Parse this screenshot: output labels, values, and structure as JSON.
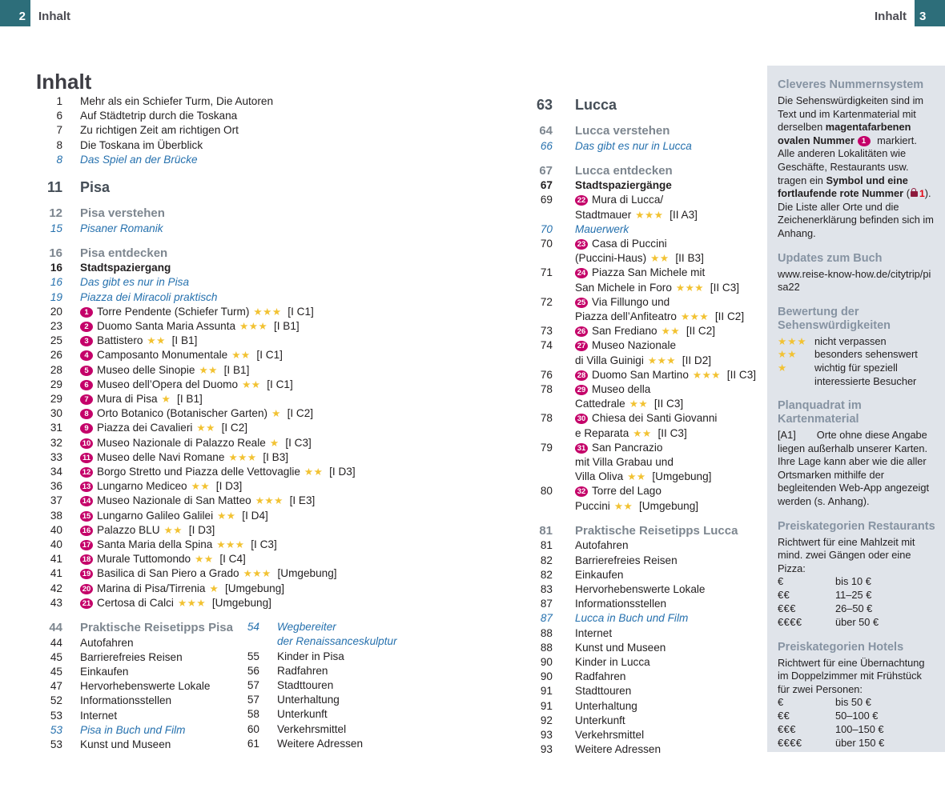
{
  "page": {
    "header": {
      "left_num": "2",
      "left_label": "Inhalt",
      "right_label": "Inhalt",
      "right_num": "3"
    },
    "title": "Inhalt"
  },
  "colors": {
    "teal_corner": "#2d6e7a",
    "sight_badge_magenta": "#c40069",
    "star_gold": "#f2c232",
    "italic_link_blue": "#2671ae",
    "section_gray": "#7d868f",
    "chapter_slate": "#454e57",
    "sidebar_bg": "#e0e4ea",
    "sidebar_heading": "#8693a2",
    "red_number": "#e30613",
    "lock_dark_red": "#8d1b3d"
  },
  "toc_left": [
    {
      "type": "list",
      "entries": [
        {
          "p": "1",
          "t": "Mehr als ein Schiefer Turm, Die Autoren"
        },
        {
          "p": "6",
          "t": "Auf Städtetrip durch die Toskana"
        },
        {
          "p": "7",
          "t": "Zu richtigen Zeit am richtigen Ort"
        },
        {
          "p": "8",
          "t": "Die Toskana im Überblick"
        },
        {
          "p": "8",
          "t": "Das Spiel an der Brücke",
          "style": "italic"
        }
      ]
    },
    {
      "type": "chapter",
      "p": "11",
      "t": "Pisa"
    },
    {
      "type": "list",
      "entries": [
        {
          "p": "12",
          "t": "Pisa verstehen",
          "style": "section"
        },
        {
          "p": "15",
          "t": "Pisaner Romanik",
          "style": "italic"
        }
      ]
    },
    {
      "type": "list",
      "entries": [
        {
          "p": "16",
          "t": "Pisa entdecken",
          "style": "section"
        },
        {
          "p": "16",
          "t": "Stadtspaziergang",
          "style": "bold"
        },
        {
          "p": "16",
          "t": "Das gibt es nur in Pisa",
          "style": "italic"
        },
        {
          "p": "19",
          "t": "Piazza dei Miracoli praktisch",
          "style": "italic"
        },
        {
          "p": "20",
          "badge": "1",
          "t": "Torre Pendente (Schiefer Turm)",
          "stars": 3,
          "grid": "[I C1]"
        },
        {
          "p": "23",
          "badge": "2",
          "t": "Duomo Santa Maria Assunta",
          "stars": 3,
          "grid": "[I B1]"
        },
        {
          "p": "25",
          "badge": "3",
          "t": "Battistero",
          "stars": 2,
          "grid": "[I B1]"
        },
        {
          "p": "26",
          "badge": "4",
          "t": "Camposanto Monumentale",
          "stars": 2,
          "grid": "[I C1]"
        },
        {
          "p": "28",
          "badge": "5",
          "t": "Museo delle Sinopie",
          "stars": 2,
          "grid": "[I B1]"
        },
        {
          "p": "29",
          "badge": "6",
          "t": "Museo dell’Opera del Duomo",
          "stars": 2,
          "grid": "[I C1]"
        },
        {
          "p": "29",
          "badge": "7",
          "t": "Mura di Pisa",
          "stars": 1,
          "grid": "[I B1]"
        },
        {
          "p": "30",
          "badge": "8",
          "t": "Orto Botanico (Botanischer Garten)",
          "stars": 1,
          "grid": "[I C2]"
        },
        {
          "p": "31",
          "badge": "9",
          "t": "Piazza dei Cavalieri",
          "stars": 2,
          "grid": "[I C2]"
        },
        {
          "p": "32",
          "badge": "10",
          "t": "Museo Nazionale di Palazzo Reale",
          "stars": 1,
          "grid": "[I C3]"
        },
        {
          "p": "33",
          "badge": "11",
          "t": "Museo delle Navi Romane",
          "stars": 3,
          "grid": "[I B3]"
        },
        {
          "p": "34",
          "badge": "12",
          "t": "Borgo Stretto und Piazza delle Vettovaglie",
          "stars": 2,
          "grid": "[I D3]"
        },
        {
          "p": "36",
          "badge": "13",
          "t": "Lungarno Mediceo",
          "stars": 2,
          "grid": "[I D3]"
        },
        {
          "p": "37",
          "badge": "14",
          "t": "Museo Nazionale di San Matteo",
          "stars": 3,
          "grid": "[I E3]"
        },
        {
          "p": "38",
          "badge": "15",
          "t": "Lungarno Galileo Galilei",
          "stars": 2,
          "grid": "[I D4]"
        },
        {
          "p": "40",
          "badge": "16",
          "t": "Palazzo BLU",
          "stars": 2,
          "grid": "[I D3]"
        },
        {
          "p": "40",
          "badge": "17",
          "t": "Santa Maria della Spina",
          "stars": 3,
          "grid": "[I C3]"
        },
        {
          "p": "41",
          "badge": "18",
          "t": "Murale Tuttomondo",
          "stars": 2,
          "grid": "[I C4]"
        },
        {
          "p": "41",
          "badge": "19",
          "t": "Basilica di San Piero a Grado",
          "stars": 3,
          "grid": "[Umgebung]"
        },
        {
          "p": "42",
          "badge": "20",
          "t": "Marina di Pisa/Tirrenia",
          "stars": 1,
          "grid": "[Umgebung]"
        },
        {
          "p": "43",
          "badge": "21",
          "t": "Certosa di Calci",
          "stars": 3,
          "grid": "[Umgebung]"
        }
      ]
    },
    {
      "type": "cols",
      "cols": [
        [
          {
            "p": "44",
            "t": "Praktische Reisetipps Pisa",
            "style": "section"
          },
          {
            "p": "44",
            "t": "Autofahren"
          },
          {
            "p": "45",
            "t": "Barrierefreies Reisen"
          },
          {
            "p": "45",
            "t": "Einkaufen"
          },
          {
            "p": "47",
            "t": "Hervorhebenswerte Lokale"
          },
          {
            "p": "52",
            "t": "Informationsstellen"
          },
          {
            "p": "53",
            "t": "Internet"
          },
          {
            "p": "53",
            "t": "Pisa in Buch und Film",
            "style": "italic"
          },
          {
            "p": "53",
            "t": "Kunst und Museen"
          }
        ],
        [
          {
            "p": "54",
            "style": "italic",
            "lines": [
              {
                "t": "Wegbereiter"
              },
              {
                "t": "der Renaissanceskulptur"
              }
            ]
          },
          {
            "p": "55",
            "t": "Kinder in Pisa"
          },
          {
            "p": "56",
            "t": "Radfahren"
          },
          {
            "p": "57",
            "t": "Stadttouren"
          },
          {
            "p": "57",
            "t": "Unterhaltung"
          },
          {
            "p": "58",
            "t": "Unterkunft"
          },
          {
            "p": "60",
            "t": "Verkehrsmittel"
          },
          {
            "p": "61",
            "t": "Weitere Adressen"
          }
        ]
      ]
    }
  ],
  "toc_mid": [
    {
      "type": "chapter",
      "p": "63",
      "t": "Lucca"
    },
    {
      "type": "list",
      "entries": [
        {
          "p": "64",
          "t": "Lucca verstehen",
          "style": "section"
        },
        {
          "p": "66",
          "t": "Das gibt es nur in Lucca",
          "style": "italic"
        }
      ]
    },
    {
      "type": "list",
      "entries": [
        {
          "p": "67",
          "t": "Lucca entdecken",
          "style": "section"
        },
        {
          "p": "67",
          "t": "Stadtspaziergänge",
          "style": "bold"
        },
        {
          "p": "69",
          "badge": "22",
          "lines": [
            {
              "t": "Mura di Lucca/"
            },
            {
              "t": "Stadtmauer",
              "stars": 3,
              "grid": "[II A3]"
            }
          ]
        },
        {
          "p": "70",
          "t": "Mauerwerk",
          "style": "italic"
        },
        {
          "p": "70",
          "badge": "23",
          "lines": [
            {
              "t": "Casa di Puccini"
            },
            {
              "t": "(Puccini-Haus)",
              "stars": 2,
              "grid": "[II B3]"
            }
          ]
        },
        {
          "p": "71",
          "badge": "24",
          "lines": [
            {
              "t": "Piazza San Michele mit"
            },
            {
              "t": "San Michele in Foro",
              "stars": 3,
              "grid": "[II C3]"
            }
          ]
        },
        {
          "p": "72",
          "badge": "25",
          "lines": [
            {
              "t": "Via Fillungo und"
            },
            {
              "t": "Piazza dell’Anfiteatro",
              "stars": 3,
              "grid": "[II C2]"
            }
          ]
        },
        {
          "p": "73",
          "badge": "26",
          "t": "San Frediano",
          "stars": 2,
          "grid": "[II C2]"
        },
        {
          "p": "74",
          "badge": "27",
          "lines": [
            {
              "t": "Museo Nazionale"
            },
            {
              "t": "di Villa Guinigi",
              "stars": 3,
              "grid": "[II D2]"
            }
          ]
        },
        {
          "p": "76",
          "badge": "28",
          "t": "Duomo San Martino",
          "stars": 3,
          "grid": "[II C3]"
        },
        {
          "p": "78",
          "badge": "29",
          "lines": [
            {
              "t": "Museo della"
            },
            {
              "t": "Cattedrale",
              "stars": 2,
              "grid": "[II C3]"
            }
          ]
        },
        {
          "p": "78",
          "badge": "30",
          "lines": [
            {
              "t": "Chiesa dei Santi Giovanni"
            },
            {
              "t": "e Reparata",
              "stars": 2,
              "grid": "[II C3]"
            }
          ]
        },
        {
          "p": "79",
          "badge": "31",
          "lines": [
            {
              "t": "San Pancrazio"
            },
            {
              "t": "mit Villa Grabau und"
            },
            {
              "t": "Villa Oliva",
              "stars": 2,
              "grid": "[Umgebung]"
            }
          ]
        },
        {
          "p": "80",
          "badge": "32",
          "lines": [
            {
              "t": "Torre del Lago"
            },
            {
              "t": "Puccini",
              "stars": 2,
              "grid": "[Umgebung]"
            }
          ]
        }
      ]
    },
    {
      "type": "list",
      "entries": [
        {
          "p": "81",
          "t": "Praktische Reisetipps Lucca",
          "style": "section"
        },
        {
          "p": "81",
          "t": "Autofahren"
        },
        {
          "p": "82",
          "t": "Barrierefreies Reisen"
        },
        {
          "p": "82",
          "t": "Einkaufen"
        },
        {
          "p": "83",
          "t": "Hervorhebenswerte Lokale"
        },
        {
          "p": "87",
          "t": "Informationsstellen"
        },
        {
          "p": "87",
          "t": "Lucca in Buch und Film",
          "style": "italic"
        },
        {
          "p": "88",
          "t": "Internet"
        },
        {
          "p": "88",
          "t": "Kunst und Museen"
        },
        {
          "p": "90",
          "t": "Kinder in Lucca"
        },
        {
          "p": "90",
          "t": "Radfahren"
        },
        {
          "p": "91",
          "t": "Stadttouren"
        },
        {
          "p": "91",
          "t": "Unterhaltung"
        },
        {
          "p": "92",
          "t": "Unterkunft"
        },
        {
          "p": "93",
          "t": "Verkehrsmittel"
        },
        {
          "p": "93",
          "t": "Weitere Adressen"
        }
      ]
    }
  ],
  "sidebar": {
    "sections": [
      {
        "h": "Cleveres Nummernsystem",
        "paras": [
          [
            {
              "t": "Die Sehenswürdigkeiten sind im Text und im Kartenmaterial mit derselben "
            },
            {
              "t": "magentafarbenen ovalen Nummer ",
              "b": 1
            },
            {
              "badge": "1"
            },
            {
              "t": " markiert. Alle anderen Lokalitäten wie Geschäfte, Restaurants usw. tragen ein "
            },
            {
              "t": "Symbol und eine fortlaufende rote Nummer",
              "b": 1
            },
            {
              "t": " ("
            },
            {
              "lock": 1,
              "t": "1"
            },
            {
              "t": "). Die Liste aller Orte und die Zeichenerklärung befinden sich im Anhang."
            }
          ]
        ]
      },
      {
        "h": "Updates zum Buch",
        "url": "www.reise-know-how.de/citytrip/pisa22"
      },
      {
        "h": "Bewertung der Sehenswürdigkeiten",
        "ratings": [
          {
            "stars": 3,
            "label": "nicht verpassen"
          },
          {
            "stars": 2,
            "label": "besonders sehenswert"
          },
          {
            "stars": 1,
            "label": "wichtig für speziell interessierte Besucher"
          }
        ]
      },
      {
        "h": "Planquadrat im Kartenmaterial",
        "paras": [
          [
            {
              "t": "[A1]",
              "key": 1
            },
            {
              "t": "Orte ohne diese Angabe liegen außerhalb unserer Karten. Ihre Lage kann aber wie die aller Ortsmarken mithilfe der begleitenden Web-App angezeigt werden (s. Anhang)."
            }
          ]
        ]
      },
      {
        "h": "Preiskategorien Restaurants",
        "paras": [
          [
            {
              "t": "Richtwert für eine Mahlzeit mit mind. zwei Gängen oder eine Pizza:"
            }
          ]
        ],
        "price_rows": [
          [
            "€",
            "bis 10 €"
          ],
          [
            "€€",
            "11–25 €"
          ],
          [
            "€€€",
            "26–50 €"
          ],
          [
            "€€€€",
            "über 50 €"
          ]
        ]
      },
      {
        "h": "Preiskategorien Hotels",
        "paras": [
          [
            {
              "t": "Richtwert für eine Übernachtung im Doppelzimmer mit Frühstück für zwei Personen:"
            }
          ]
        ],
        "price_rows": [
          [
            "€",
            "bis 50 €"
          ],
          [
            "€€",
            "50–100 €"
          ],
          [
            "€€€",
            "100–150 €"
          ],
          [
            "€€€€",
            "über 150 €"
          ]
        ]
      }
    ]
  }
}
